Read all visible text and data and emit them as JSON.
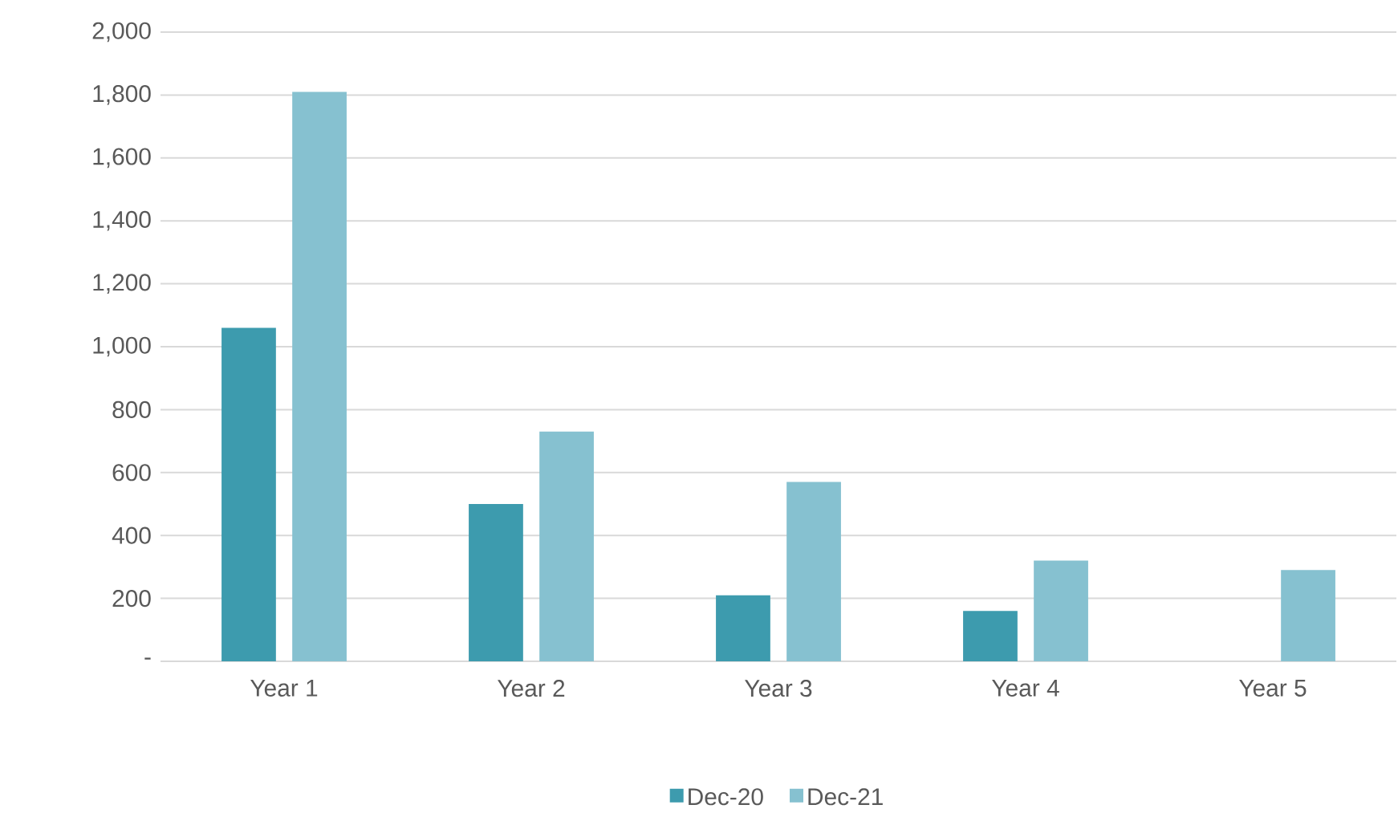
{
  "chart_data": {
    "type": "bar",
    "categories": [
      "Year 1",
      "Year 2",
      "Year 3",
      "Year 4",
      "Year 5"
    ],
    "series": [
      {
        "name": "Dec-20",
        "color": "#3d9bae",
        "values": [
          1060,
          500,
          210,
          160,
          null
        ]
      },
      {
        "name": "Dec-21",
        "color": "#86c1d0",
        "values": [
          1810,
          730,
          570,
          320,
          290
        ]
      }
    ],
    "ylim": [
      0,
      2000
    ],
    "yticks": [
      {
        "value": 0,
        "label": "-"
      },
      {
        "value": 200,
        "label": "200"
      },
      {
        "value": 400,
        "label": "400"
      },
      {
        "value": 600,
        "label": "600"
      },
      {
        "value": 800,
        "label": "800"
      },
      {
        "value": 1000,
        "label": "1,000"
      },
      {
        "value": 1200,
        "label": "1,200"
      },
      {
        "value": 1400,
        "label": "1,400"
      },
      {
        "value": 1600,
        "label": "1,600"
      },
      {
        "value": 1800,
        "label": "1,800"
      },
      {
        "value": 2000,
        "label": "2,000"
      }
    ],
    "grid": "y",
    "legend": "bottom"
  }
}
